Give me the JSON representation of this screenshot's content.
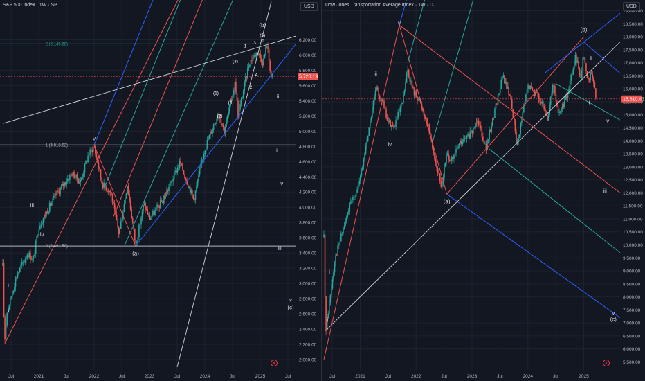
{
  "chart_data": [
    {
      "type": "candlestick",
      "title": "S&P 500 Index · 1W · SP",
      "currency": "USD",
      "last_price": "5,720.19",
      "ylim": [
        1900,
        6650
      ],
      "xlim": [
        2020.35,
        2025.65
      ],
      "y_ticks": [
        "2,000.00",
        "2,200.00",
        "2,400.00",
        "2,600.00",
        "2,800.00",
        "3,000.00",
        "3,200.00",
        "3,400.00",
        "3,600.00",
        "3,800.00",
        "4,000.00",
        "4,200.00",
        "4,400.00",
        "4,600.00",
        "4,800.00",
        "5,000.00",
        "5,200.00",
        "5,400.00",
        "5,600.00",
        "5,800.00",
        "6,000.00",
        "6,200.00"
      ],
      "x_ticks": [
        [
          "Jul",
          2020.5
        ],
        [
          "2021",
          2021.0
        ],
        [
          "Jul",
          2021.5
        ],
        [
          "2022",
          2022.0
        ],
        [
          "Jul",
          2022.5
        ],
        [
          "2023",
          2023.0
        ],
        [
          "Jul",
          2023.5
        ],
        [
          "2024",
          2024.0
        ],
        [
          "Jul",
          2024.5
        ],
        [
          "2025",
          2025.0
        ],
        [
          "Jul",
          2025.5
        ]
      ],
      "fib_levels": [
        {
          "label": "2 (6,145.68)",
          "value": 6145.68,
          "color": "#26a69a"
        },
        {
          "label": "1 (4,818.62)",
          "value": 4818.62,
          "color": "#b2b5be"
        },
        {
          "label": "0 (3,491.58)",
          "value": 3491.58,
          "color": "#b2b5be"
        }
      ],
      "price_path": [
        [
          2020.35,
          3230
        ],
        [
          2020.38,
          2200
        ],
        [
          2020.42,
          2600
        ],
        [
          2020.6,
          3100
        ],
        [
          2020.8,
          3400
        ],
        [
          2020.9,
          3300
        ],
        [
          2021.0,
          3750
        ],
        [
          2021.3,
          4150
        ],
        [
          2021.6,
          4450
        ],
        [
          2021.75,
          4330
        ],
        [
          2021.9,
          4700
        ],
        [
          2022.0,
          4796
        ],
        [
          2022.15,
          4300
        ],
        [
          2022.3,
          4200
        ],
        [
          2022.45,
          3650
        ],
        [
          2022.6,
          4300
        ],
        [
          2022.75,
          3500
        ],
        [
          2022.9,
          4050
        ],
        [
          2023.0,
          3850
        ],
        [
          2023.25,
          4100
        ],
        [
          2023.55,
          4590
        ],
        [
          2023.8,
          4100
        ],
        [
          2024.0,
          4780
        ],
        [
          2024.25,
          5250
        ],
        [
          2024.35,
          5000
        ],
        [
          2024.55,
          5650
        ],
        [
          2024.6,
          5200
        ],
        [
          2024.8,
          5900
        ],
        [
          2024.95,
          6050
        ],
        [
          2025.05,
          5900
        ],
        [
          2025.12,
          6147
        ],
        [
          2025.2,
          5700
        ],
        [
          2025.22,
          5720
        ]
      ],
      "waves": [
        {
          "t": "i",
          "x": 2020.45,
          "y": 2950
        },
        {
          "t": "ii",
          "x": 2020.47,
          "y": 2620
        },
        {
          "t": "iii",
          "x": 2020.88,
          "y": 4000
        },
        {
          "t": "iv",
          "x": 2021.06,
          "y": 3620
        },
        {
          "t": "v",
          "x": 2022.0,
          "y": 4880
        },
        {
          "t": "(a)",
          "x": 2022.75,
          "y": 3370
        },
        {
          "t": "(1)",
          "x": 2024.2,
          "y": 5480
        },
        {
          "t": "(2)",
          "x": 2024.27,
          "y": 5180
        },
        {
          "t": "(3)",
          "x": 2024.55,
          "y": 5900
        },
        {
          "t": "(4)",
          "x": 2024.47,
          "y": 5360
        },
        {
          "t": "1",
          "x": 2024.73,
          "y": 6100
        },
        {
          "t": "2",
          "x": 2024.83,
          "y": 5560
        },
        {
          "t": "3",
          "x": 2024.9,
          "y": 6140
        },
        {
          "t": "4",
          "x": 2024.93,
          "y": 5720
        },
        {
          "t": "5",
          "x": 2025.05,
          "y": 6170
        },
        {
          "t": "(5)",
          "x": 2025.04,
          "y": 6240
        },
        {
          "t": "(b)",
          "x": 2025.04,
          "y": 6370
        },
        {
          "t": "ii",
          "x": 2025.32,
          "y": 5430
        },
        {
          "t": "i",
          "x": 2025.3,
          "y": 4730
        },
        {
          "t": "iv",
          "x": 2025.38,
          "y": 4290
        },
        {
          "t": "iii",
          "x": 2025.35,
          "y": 3440
        },
        {
          "t": "v",
          "x": 2025.55,
          "y": 2760
        },
        {
          "t": "(c)",
          "x": 2025.55,
          "y": 2660
        }
      ]
    },
    {
      "type": "candlestick",
      "title": "Dow Jones Transportation Average Index · 1W · DJ",
      "currency": "USD",
      "last_price": "15,610.43",
      "ylim": [
        5300,
        19200
      ],
      "xlim": [
        2020.35,
        2025.65
      ],
      "y_ticks": [
        "5,500.00",
        "6,000.00",
        "6,500.00",
        "7,000.00",
        "7,500.00",
        "8,000.00",
        "8,500.00",
        "9,000.00",
        "9,500.00",
        "10,000.00",
        "10,500.00",
        "11,000.00",
        "11,500.00",
        "12,000.00",
        "12,500.00",
        "13,000.00",
        "13,500.00",
        "14,000.00",
        "14,500.00",
        "15,000.00",
        "15,500.00",
        "16,000.00",
        "16,500.00",
        "17,000.00",
        "17,500.00",
        "18,000.00",
        "18,500.00",
        "19,000.00"
      ],
      "x_ticks": [
        [
          "Jul",
          2020.5
        ],
        [
          "2021",
          2021.0
        ],
        [
          "Jul",
          2021.5
        ],
        [
          "2022",
          2022.0
        ],
        [
          "Jul",
          2022.5
        ],
        [
          "2023",
          2023.0
        ],
        [
          "Jul",
          2023.5
        ],
        [
          "2024",
          2024.0
        ],
        [
          "Jul",
          2024.5
        ],
        [
          "2025",
          2025.0
        ]
      ],
      "price_path": [
        [
          2020.35,
          10300
        ],
        [
          2020.38,
          6700
        ],
        [
          2020.42,
          7300
        ],
        [
          2020.55,
          9500
        ],
        [
          2020.8,
          11400
        ],
        [
          2021.0,
          12500
        ],
        [
          2021.15,
          14400
        ],
        [
          2021.28,
          16000
        ],
        [
          2021.4,
          15500
        ],
        [
          2021.48,
          14800
        ],
        [
          2021.6,
          14500
        ],
        [
          2021.75,
          15400
        ],
        [
          2021.85,
          16700
        ],
        [
          2021.95,
          15900
        ],
        [
          2022.05,
          15600
        ],
        [
          2022.2,
          14700
        ],
        [
          2022.35,
          13200
        ],
        [
          2022.45,
          12200
        ],
        [
          2022.55,
          13500
        ],
        [
          2022.65,
          13200
        ],
        [
          2022.75,
          13800
        ],
        [
          2023.0,
          14300
        ],
        [
          2023.1,
          14900
        ],
        [
          2023.25,
          13700
        ],
        [
          2023.55,
          16500
        ],
        [
          2023.7,
          15600
        ],
        [
          2023.8,
          13800
        ],
        [
          2024.0,
          16100
        ],
        [
          2024.2,
          15700
        ],
        [
          2024.35,
          14800
        ],
        [
          2024.45,
          16300
        ],
        [
          2024.55,
          15000
        ],
        [
          2024.7,
          15700
        ],
        [
          2024.85,
          17200
        ],
        [
          2024.95,
          16500
        ],
        [
          2025.0,
          17400
        ],
        [
          2025.06,
          16300
        ],
        [
          2025.15,
          16600
        ],
        [
          2025.22,
          15610
        ]
      ],
      "waves": [
        {
          "t": "i",
          "x": 2020.45,
          "y": 8900
        },
        {
          "t": "ii",
          "x": 2020.43,
          "y": 7050
        },
        {
          "t": "iii",
          "x": 2021.27,
          "y": 16500
        },
        {
          "t": "iv",
          "x": 2021.53,
          "y": 13800
        },
        {
          "t": "v",
          "x": 2021.7,
          "y": 18450
        },
        {
          "t": "(a)",
          "x": 2022.55,
          "y": 11600
        },
        {
          "t": "(b)",
          "x": 2025.0,
          "y": 18200
        },
        {
          "t": "ii",
          "x": 2025.13,
          "y": 17100
        },
        {
          "t": "i",
          "x": 2025.1,
          "y": 15400
        },
        {
          "t": "iv",
          "x": 2025.42,
          "y": 14700
        },
        {
          "t": "iii",
          "x": 2025.38,
          "y": 12000
        },
        {
          "t": "v",
          "x": 2025.53,
          "y": 7300
        },
        {
          "t": "(c)",
          "x": 2025.53,
          "y": 7070
        }
      ]
    }
  ],
  "ui": {
    "event_icon": "lightning-icon"
  }
}
